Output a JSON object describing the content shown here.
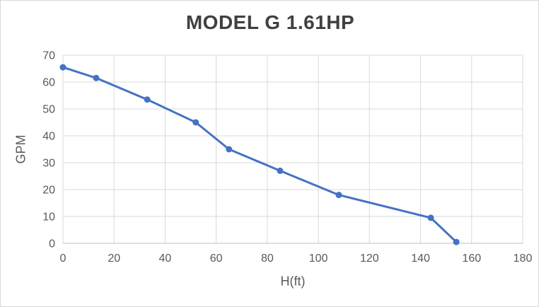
{
  "chart_data": {
    "type": "line",
    "title": "MODEL G 1.61HP",
    "xlabel": "H(ft)",
    "ylabel": "GPM",
    "series": [
      {
        "name": "MODEL G 1.61HP",
        "x": [
          0,
          13,
          33,
          52,
          65,
          85,
          108,
          144,
          154
        ],
        "y": [
          65.5,
          61.5,
          53.5,
          45,
          35,
          27,
          18,
          9.5,
          0.5
        ]
      }
    ],
    "xlim": [
      0,
      180
    ],
    "ylim": [
      0,
      70
    ],
    "x_ticks": [
      0,
      20,
      40,
      60,
      80,
      100,
      120,
      140,
      160,
      180
    ],
    "y_ticks": [
      0,
      10,
      20,
      30,
      40,
      50,
      60,
      70
    ],
    "grid": true,
    "legend": false,
    "marker": "circle",
    "colors": {
      "line": "#4472C4",
      "marker": "#4472C4",
      "gridline": "#d9d9d9",
      "axis_line": "#bfbfbf",
      "tick_text": "#595959",
      "title_text": "#404040",
      "axis_title_text": "#595959",
      "chart_border": "#d9d9d9",
      "background": "#ffffff"
    }
  }
}
